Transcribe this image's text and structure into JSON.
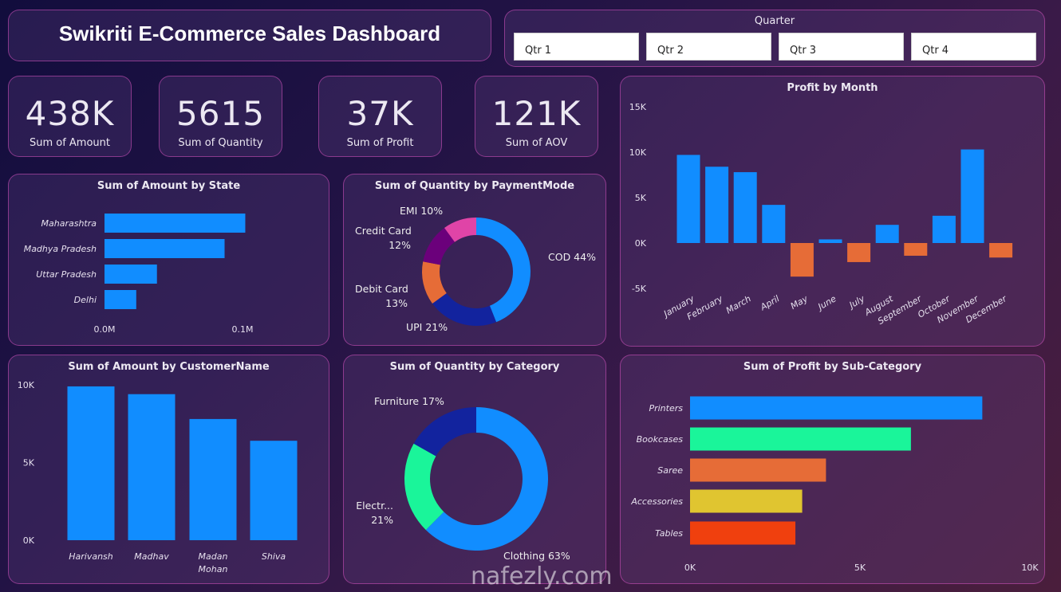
{
  "header": {
    "title": "Swikriti E-Commerce Sales Dashboard"
  },
  "quarter_slicer": {
    "title": "Quarter",
    "options": [
      "Qtr 1",
      "Qtr 2",
      "Qtr 3",
      "Qtr 4"
    ]
  },
  "kpis": [
    {
      "value": "438K",
      "label": "Sum of Amount"
    },
    {
      "value": "5615",
      "label": "Sum of Quantity"
    },
    {
      "value": "37K",
      "label": "Sum of Profit"
    },
    {
      "value": "121K",
      "label": "Sum of AOV"
    }
  ],
  "colors": {
    "blue": "#118DFF",
    "dark_blue": "#12239E",
    "orange": "#E66C37",
    "purple": "#6B007B",
    "pink": "#E044A7",
    "green": "#1AF59A",
    "yellow": "#E0C530",
    "red": "#F0400E"
  },
  "watermark": "nafezly.com",
  "chart_data": [
    {
      "type": "bar",
      "orientation": "horizontal",
      "title": "Sum of Amount by State",
      "categories": [
        "Maharashtra",
        "Madhya Pradesh",
        "Uttar Pradesh",
        "Delhi"
      ],
      "values": [
        0.102,
        0.087,
        0.038,
        0.023
      ],
      "unit": "M",
      "xticks": [
        "0.0M",
        "0.1M"
      ],
      "xlim": [
        0,
        0.1
      ]
    },
    {
      "type": "pie",
      "donut": true,
      "title": "Sum of Quantity by PaymentMode",
      "labels": [
        "COD",
        "UPI",
        "Debit Card",
        "Credit Card",
        "EMI"
      ],
      "values": [
        44,
        21,
        13,
        12,
        10
      ],
      "display": [
        "COD 44%",
        "UPI 21%",
        "Debit Card 13%",
        "Credit Card 12%",
        "EMI 10%"
      ]
    },
    {
      "type": "bar",
      "title": "Profit by Month",
      "categories": [
        "January",
        "February",
        "March",
        "April",
        "May",
        "June",
        "July",
        "August",
        "September",
        "October",
        "November",
        "December"
      ],
      "values": [
        9700,
        8400,
        7800,
        4200,
        -3700,
        400,
        -2100,
        2000,
        -1400,
        3000,
        10300,
        -1600
      ],
      "yticks": [
        "15K",
        "10K",
        "5K",
        "0K",
        "-5K"
      ],
      "ylim": [
        -5000,
        15000
      ]
    },
    {
      "type": "bar",
      "title": "Sum of Amount by CustomerName",
      "categories": [
        "Harivansh",
        "Madhav",
        "Madan Mohan",
        "Shiva"
      ],
      "values": [
        9900,
        9400,
        7800,
        6400
      ],
      "yticks": [
        "10K",
        "5K",
        "0K"
      ],
      "ylim": [
        0,
        10000
      ]
    },
    {
      "type": "pie",
      "donut": true,
      "title": "Sum of Quantity by Category",
      "labels": [
        "Clothing",
        "Electronics",
        "Furniture"
      ],
      "values": [
        63,
        21,
        17
      ],
      "display": [
        "Clothing 63%",
        "Electr... 21%",
        "Furniture 17%"
      ]
    },
    {
      "type": "bar",
      "orientation": "horizontal",
      "title": "Sum of Profit by Sub-Category",
      "categories": [
        "Printers",
        "Bookcases",
        "Saree",
        "Accessories",
        "Tables"
      ],
      "values": [
        8600,
        6500,
        4000,
        3300,
        3100
      ],
      "xticks": [
        "0K",
        "5K",
        "10K"
      ],
      "xlim": [
        0,
        10000
      ]
    }
  ]
}
